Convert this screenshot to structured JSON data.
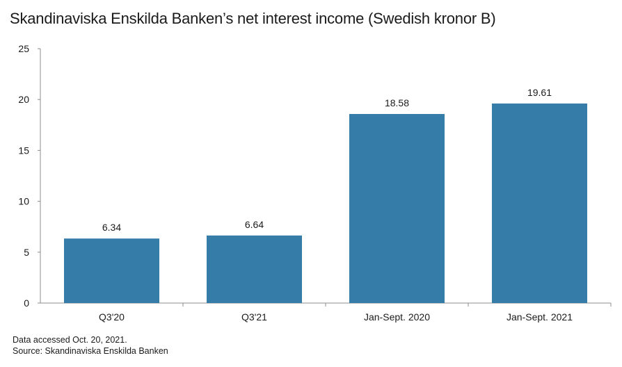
{
  "chart_data": {
    "type": "bar",
    "title": "Skandinaviska Enskilda Banken’s net interest income (Swedish kronor B)",
    "categories": [
      "Q3'20",
      "Q3'21",
      "Jan-Sept. 2020",
      "Jan-Sept. 2021"
    ],
    "values": [
      6.34,
      6.64,
      18.58,
      19.61
    ],
    "data_labels": [
      "6.34",
      "6.64",
      "18.58",
      "19.61"
    ],
    "xlabel": "",
    "ylabel": "",
    "ylim": [
      0,
      25
    ],
    "yticks": [
      0,
      5,
      10,
      15,
      20,
      25
    ],
    "grid": false,
    "legend": "none",
    "bar_color": "#357ca8"
  },
  "footnotes": {
    "note": "Data accessed Oct. 20, 2021.",
    "source": "Source: Skandinaviska Enskilda Banken"
  }
}
